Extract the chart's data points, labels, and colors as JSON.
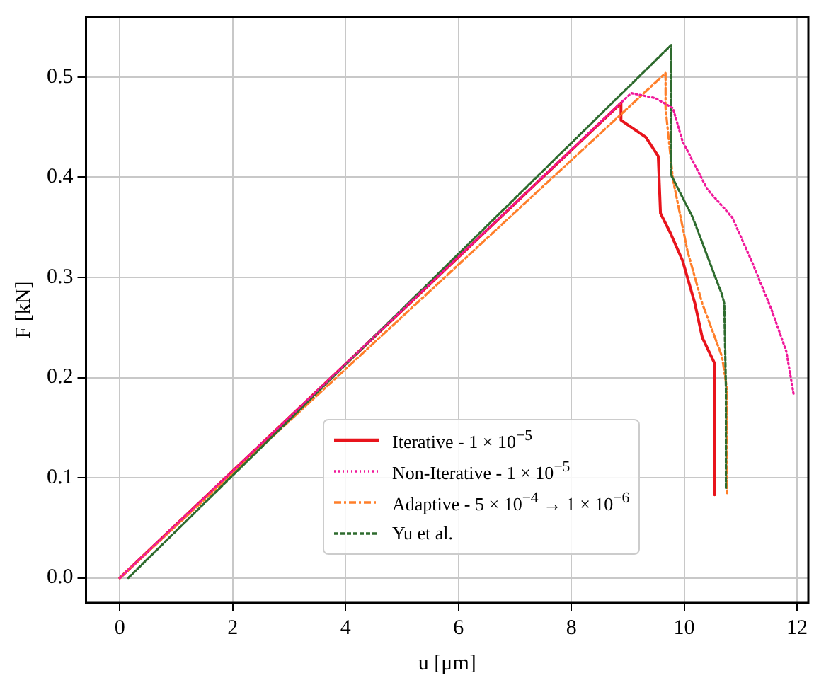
{
  "chart_data": {
    "type": "line",
    "xlabel": "u [μm]",
    "ylabel": "F [kN]",
    "xlim": [
      -0.6,
      12.2
    ],
    "ylim": [
      -0.025,
      0.56
    ],
    "xticks": [
      0,
      2,
      4,
      6,
      8,
      10,
      12
    ],
    "yticks": [
      {
        "value": 0,
        "label": "0.0"
      },
      0.1,
      0.2,
      0.3,
      0.4,
      0.5
    ],
    "grid": true,
    "legend": "bottom right",
    "marker": "none",
    "series": [
      {
        "name": "Iterative - 1 × 10$^{−5}$",
        "color": "#e8141c",
        "line_style": "solid",
        "x": [
          0,
          8.88,
          8.88,
          9.32,
          9.54,
          9.58,
          9.75,
          9.97,
          10.19,
          10.32,
          10.54,
          10.54
        ],
        "values": [
          0,
          0.474,
          0.457,
          0.44,
          0.421,
          0.364,
          0.345,
          0.317,
          0.274,
          0.24,
          0.214,
          0.083
        ]
      },
      {
        "name": "Non-Iterative - 1 × 10$^{−5}$",
        "color": "#f0189a",
        "line_style": "dotted",
        "x": [
          0,
          9.06,
          9.49,
          9.8,
          9.97,
          10.41,
          10.85,
          11.19,
          11.54,
          11.81,
          11.94
        ],
        "values": [
          0,
          0.484,
          0.479,
          0.469,
          0.436,
          0.388,
          0.36,
          0.317,
          0.269,
          0.226,
          0.183
        ]
      },
      {
        "name": "Adaptive - 5 × 10$^{−4}$ → 1 × 10$^{−6}$",
        "color": "#ff7f2a",
        "line_style": "dashdot",
        "x": [
          0,
          9.67,
          9.67,
          9.8,
          10.06,
          10.32,
          10.67,
          10.76,
          10.76
        ],
        "values": [
          0,
          0.504,
          0.469,
          0.398,
          0.326,
          0.274,
          0.221,
          0.188,
          0.083
        ]
      },
      {
        "name": "Yu et al.",
        "color": "#2e6b2e",
        "line_style": "dashed",
        "x": [
          0.15,
          9.77,
          9.77,
          10.15,
          10.54,
          10.67,
          10.71,
          10.74,
          10.74
        ],
        "values": [
          0,
          0.532,
          0.402,
          0.36,
          0.302,
          0.283,
          0.274,
          0.188,
          0.088
        ]
      }
    ]
  }
}
